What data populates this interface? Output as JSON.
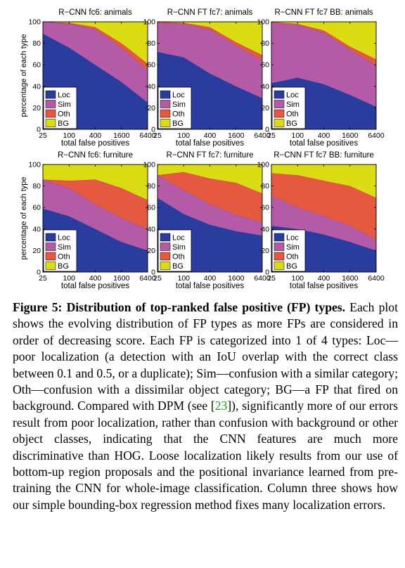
{
  "chart_data": [
    {
      "type": "area",
      "title": "R−CNN fc6: animals",
      "xlabel": "total false positives",
      "ylabel": "percentage of each type",
      "x": [
        25,
        100,
        400,
        1600,
        6400
      ],
      "x_tick_labels": [
        "25",
        "100",
        "400",
        "1600",
        "6400"
      ],
      "x_scale": "log",
      "ylim": [
        0,
        100
      ],
      "y_ticks": [
        0,
        20,
        40,
        60,
        80,
        100
      ],
      "stacked": true,
      "series": [
        {
          "name": "Loc",
          "values": [
            89,
            76,
            60,
            44,
            25
          ]
        },
        {
          "name": "Sim",
          "values": [
            11,
            22,
            33,
            32,
            30
          ]
        },
        {
          "name": "Oth",
          "values": [
            0,
            1,
            2,
            4,
            6
          ]
        },
        {
          "name": "BG",
          "values": [
            0,
            1,
            5,
            20,
            39
          ]
        }
      ],
      "legend": "bottom-left"
    },
    {
      "type": "area",
      "title": "R−CNN FT fc7: animals",
      "xlabel": "total false positives",
      "ylabel": "",
      "x": [
        25,
        100,
        400,
        1600,
        6400
      ],
      "x_tick_labels": [
        "25",
        "100",
        "400",
        "1600",
        "6400"
      ],
      "x_scale": "log",
      "ylim": [
        0,
        100
      ],
      "y_ticks": [
        0,
        20,
        40,
        60,
        80,
        100
      ],
      "stacked": true,
      "series": [
        {
          "name": "Loc",
          "values": [
            72,
            67,
            52,
            40,
            29
          ]
        },
        {
          "name": "Sim",
          "values": [
            27,
            31,
            41,
            38,
            35
          ]
        },
        {
          "name": "Oth",
          "values": [
            1,
            1,
            2,
            3,
            5
          ]
        },
        {
          "name": "BG",
          "values": [
            0,
            1,
            5,
            19,
            31
          ]
        }
      ],
      "legend": "bottom-left"
    },
    {
      "type": "area",
      "title": "R−CNN FT fc7 BB: animals",
      "xlabel": "total false positives",
      "ylabel": "",
      "x": [
        25,
        100,
        400,
        1600,
        6400
      ],
      "x_tick_labels": [
        "25",
        "100",
        "400",
        "1600",
        "6400"
      ],
      "x_scale": "log",
      "ylim": [
        0,
        100
      ],
      "y_ticks": [
        0,
        20,
        40,
        60,
        80,
        100
      ],
      "stacked": true,
      "series": [
        {
          "name": "Loc",
          "values": [
            43,
            48,
            42,
            32,
            21
          ]
        },
        {
          "name": "Sim",
          "values": [
            56,
            49,
            48,
            42,
            38
          ]
        },
        {
          "name": "Oth",
          "values": [
            1,
            1,
            2,
            3,
            6
          ]
        },
        {
          "name": "BG",
          "values": [
            0,
            2,
            8,
            23,
            35
          ]
        }
      ],
      "legend": "bottom-left"
    },
    {
      "type": "area",
      "title": "R−CNN fc6: furniture",
      "xlabel": "total false positives",
      "ylabel": "percentage of each type",
      "x": [
        25,
        100,
        400,
        1600,
        6400
      ],
      "x_tick_labels": [
        "25",
        "100",
        "400",
        "1600",
        "6400"
      ],
      "x_scale": "log",
      "ylim": [
        0,
        100
      ],
      "y_ticks": [
        0,
        20,
        40,
        60,
        80,
        100
      ],
      "stacked": true,
      "series": [
        {
          "name": "Loc",
          "values": [
            59,
            52,
            40,
            28,
            20
          ]
        },
        {
          "name": "Sim",
          "values": [
            27,
            26,
            23,
            22,
            20
          ]
        },
        {
          "name": "Oth",
          "values": [
            0,
            7,
            23,
            28,
            27
          ]
        },
        {
          "name": "BG",
          "values": [
            14,
            15,
            14,
            22,
            33
          ]
        }
      ],
      "legend": "bottom-left"
    },
    {
      "type": "area",
      "title": "R−CNN FT fc7: furniture",
      "xlabel": "total false positives",
      "ylabel": "",
      "x": [
        25,
        100,
        400,
        1600,
        6400
      ],
      "x_tick_labels": [
        "25",
        "100",
        "400",
        "1600",
        "6400"
      ],
      "x_scale": "log",
      "ylim": [
        0,
        100
      ],
      "y_ticks": [
        0,
        20,
        40,
        60,
        80,
        100
      ],
      "stacked": true,
      "series": [
        {
          "name": "Loc",
          "values": [
            69,
            54,
            44,
            38,
            34
          ]
        },
        {
          "name": "Sim",
          "values": [
            21,
            22,
            19,
            15,
            12
          ]
        },
        {
          "name": "Oth",
          "values": [
            0,
            17,
            24,
            30,
            27
          ]
        },
        {
          "name": "BG",
          "values": [
            10,
            7,
            13,
            17,
            27
          ]
        }
      ],
      "legend": "bottom-left"
    },
    {
      "type": "area",
      "title": "R−CNN FT fc7 BB: furniture",
      "xlabel": "total false positives",
      "ylabel": "",
      "x": [
        25,
        100,
        400,
        1600,
        6400
      ],
      "x_tick_labels": [
        "25",
        "100",
        "400",
        "1600",
        "6400"
      ],
      "x_scale": "log",
      "ylim": [
        0,
        100
      ],
      "y_ticks": [
        0,
        20,
        40,
        60,
        80,
        100
      ],
      "stacked": true,
      "series": [
        {
          "name": "Loc",
          "values": [
            43,
            40,
            35,
            28,
            20
          ]
        },
        {
          "name": "Sim",
          "values": [
            28,
            20,
            17,
            15,
            10
          ]
        },
        {
          "name": "Oth",
          "values": [
            21,
            30,
            33,
            37,
            39
          ]
        },
        {
          "name": "BG",
          "values": [
            8,
            10,
            15,
            20,
            31
          ]
        }
      ],
      "legend": "bottom-left"
    }
  ],
  "colors": {
    "Loc": "#2a3c9e",
    "Sim": "#b45aa6",
    "Oth": "#e45940",
    "BG": "#dcdc14"
  },
  "caption": {
    "label": "Figure 5: Distribution of top-ranked false positive (FP) types.",
    "text_before_cite": " Each plot shows the evolving distribution of FP types as more FPs are considered in order of decreasing score. Each FP is categorized into 1 of 4 types: Loc—poor localization (a detection with an IoU overlap with the correct class between 0.1 and 0.5, or a duplicate); Sim—confusion with a similar category; Oth—confusion with a dissimilar object category; BG—a FP that fired on background. Compared with DPM (see [",
    "cite": "23",
    "text_after_cite": "]), significantly more of our errors result from poor localization, rather than confusion with background or other object classes, indicating that the CNN features are much more discriminative than HOG. Loose localization likely results from our use of bottom-up region proposals and the positional invariance learned from pre-training the CNN for whole-image classification. Column three shows how our simple bounding-box regression method fixes many localization errors."
  }
}
